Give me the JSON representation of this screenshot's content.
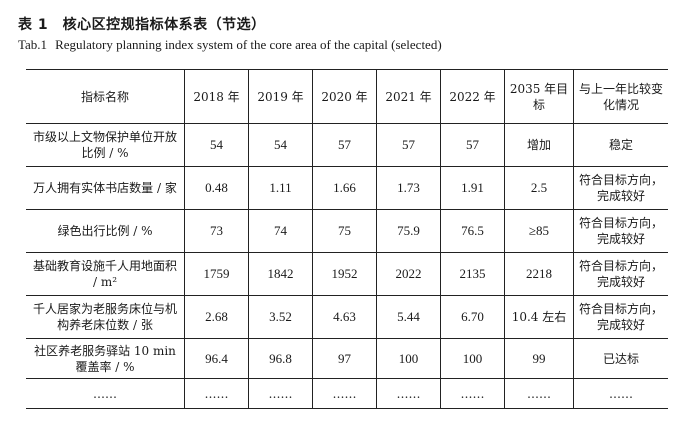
{
  "title": {
    "cn": "表 1　核心区控规指标体系表（节选）",
    "en_label": "Tab.1",
    "en_text": "Regulatory planning index system of the core area of the capital (selected)"
  },
  "table": {
    "headers": [
      "指标名称",
      "2018 年",
      "2019 年",
      "2020 年",
      "2021 年",
      "2022 年",
      "2035 年目标",
      "与上一年比较变化情况"
    ],
    "rows": [
      [
        "市级以上文物保护单位开放比例 / %",
        "54",
        "54",
        "57",
        "57",
        "57",
        "增加",
        "稳定"
      ],
      [
        "万人拥有实体书店数量 / 家",
        "0.48",
        "1.11",
        "1.66",
        "1.73",
        "1.91",
        "2.5",
        "符合目标方向，完成较好"
      ],
      [
        "绿色出行比例 / %",
        "73",
        "74",
        "75",
        "75.9",
        "76.5",
        "≥85",
        "符合目标方向，完成较好"
      ],
      [
        "基础教育设施千人用地面积 / m²",
        "1759",
        "1842",
        "1952",
        "2022",
        "2135",
        "2218",
        "符合目标方向，完成较好"
      ],
      [
        "千人居家为老服务床位与机构养老床位数 / 张",
        "2.68",
        "3.52",
        "4.63",
        "5.44",
        "6.70",
        "10.4 左右",
        "符合目标方向，完成较好"
      ],
      [
        "社区养老服务驿站 10 min 覆盖率 / %",
        "96.4",
        "96.8",
        "97",
        "100",
        "100",
        "99",
        "已达标"
      ],
      [
        "……",
        "……",
        "……",
        "……",
        "……",
        "……",
        "……",
        "……"
      ]
    ]
  }
}
